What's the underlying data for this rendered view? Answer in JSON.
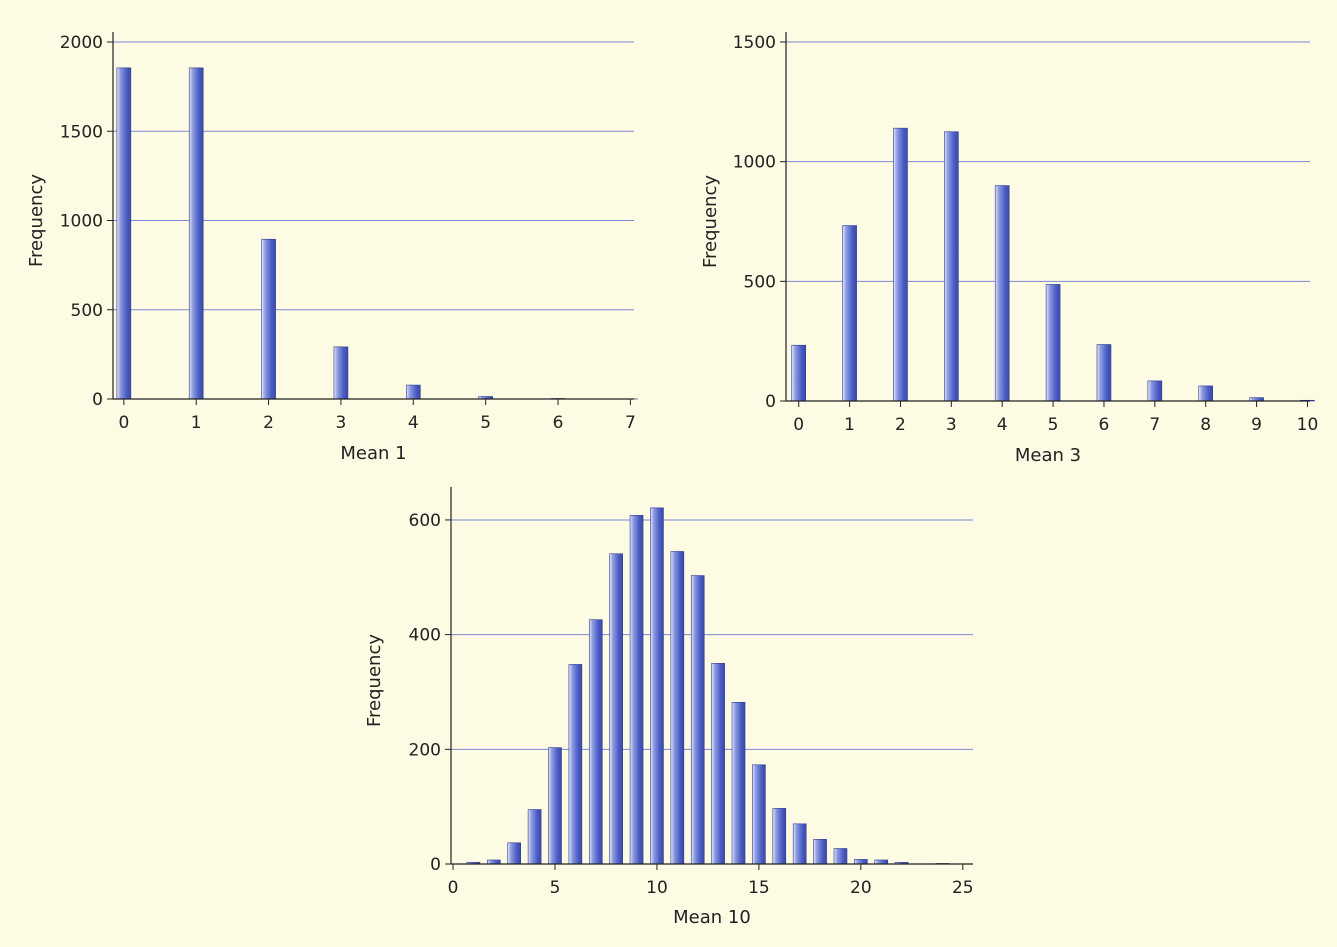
{
  "chart_data": [
    {
      "type": "bar",
      "xlabel": "Mean 1",
      "ylabel": "Frequency",
      "x": [
        0,
        1,
        2,
        3,
        4,
        5,
        6,
        7
      ],
      "values": [
        1855,
        1855,
        895,
        292,
        78,
        14,
        3,
        1
      ],
      "xticks": [
        0,
        1,
        2,
        3,
        4,
        5,
        6,
        7
      ],
      "yticks": [
        0,
        500,
        1000,
        1500,
        2000
      ],
      "xlim": [
        -0.15,
        7.05
      ],
      "ylim": [
        0,
        2000
      ],
      "grid": true
    },
    {
      "type": "bar",
      "xlabel": "Mean 3",
      "ylabel": "Frequency",
      "x": [
        0,
        1,
        2,
        3,
        4,
        5,
        6,
        7,
        8,
        9,
        10
      ],
      "values": [
        233,
        733,
        1140,
        1125,
        900,
        487,
        236,
        84,
        63,
        14,
        3
      ],
      "xticks": [
        0,
        1,
        2,
        3,
        4,
        5,
        6,
        7,
        8,
        9,
        10
      ],
      "yticks": [
        0,
        500,
        1000,
        1500
      ],
      "xlim": [
        -0.25,
        10.05
      ],
      "ylim": [
        0,
        1500
      ],
      "grid": true
    },
    {
      "type": "bar",
      "xlabel": "Mean 10",
      "ylabel": "Frequency",
      "x": [
        1,
        2,
        3,
        4,
        5,
        6,
        7,
        8,
        9,
        10,
        11,
        12,
        13,
        14,
        15,
        16,
        17,
        18,
        19,
        20,
        21,
        22,
        23,
        24
      ],
      "values": [
        3,
        7,
        37,
        95,
        203,
        348,
        426,
        541,
        608,
        621,
        545,
        503,
        350,
        282,
        173,
        97,
        70,
        43,
        27,
        8,
        7,
        3,
        0,
        1
      ],
      "xticks": [
        0,
        5,
        10,
        15,
        20,
        25
      ],
      "yticks": [
        0,
        200,
        400,
        600
      ],
      "xlim": [
        -0.1,
        25.5
      ],
      "ylim": [
        0,
        640
      ],
      "grid": true
    }
  ]
}
